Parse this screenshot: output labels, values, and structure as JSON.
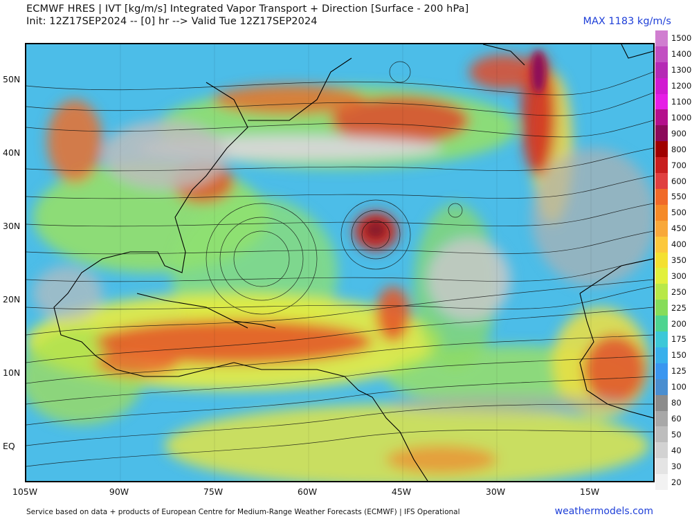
{
  "header": {
    "title": "ECMWF HRES | IVT [kg/m/s] Integrated Vapor Transport + Direction [Surface - 200 hPa]",
    "init_line": "Init: 12Z17SEP2024 -- [0] hr --> Valid Tue 12Z17SEP2024",
    "max_label": "MAX 1183 kg/m/s"
  },
  "axes": {
    "lat_labels": [
      "50N",
      "40N",
      "30N",
      "20N",
      "10N",
      "EQ"
    ],
    "lon_labels": [
      "105W",
      "90W",
      "75W",
      "60W",
      "45W",
      "30W",
      "15W"
    ]
  },
  "colorbar": {
    "levels": [
      "1500",
      "1400",
      "1300",
      "1200",
      "1100",
      "1000",
      "900",
      "800",
      "700",
      "600",
      "550",
      "500",
      "450",
      "400",
      "350",
      "300",
      "250",
      "225",
      "200",
      "175",
      "150",
      "125",
      "100",
      "80",
      "60",
      "50",
      "40",
      "30",
      "20"
    ],
    "colors": [
      "#d07ed0",
      "#c24fc2",
      "#b52ab5",
      "#d11ad1",
      "#e61ee6",
      "#b4108c",
      "#8c0a5a",
      "#a00000",
      "#c81e1e",
      "#e04040",
      "#f06a28",
      "#f58a28",
      "#f8a83a",
      "#fcc83c",
      "#f4e030",
      "#e2f03c",
      "#b8e848",
      "#86dc5a",
      "#4ed490",
      "#3cc8d8",
      "#38b0ec",
      "#3a96f0",
      "#4a8ed0",
      "#8c8c8c",
      "#a8a8a8",
      "#bdbdbd",
      "#d2d2d2",
      "#e4e4e4",
      "#f2f2f2"
    ]
  },
  "footer": {
    "credit": "Service based on data + products of European Centre for Medium-Range Weather Forecasts (ECMWF) | IFS Operational",
    "site": "weathermodels.com"
  }
}
